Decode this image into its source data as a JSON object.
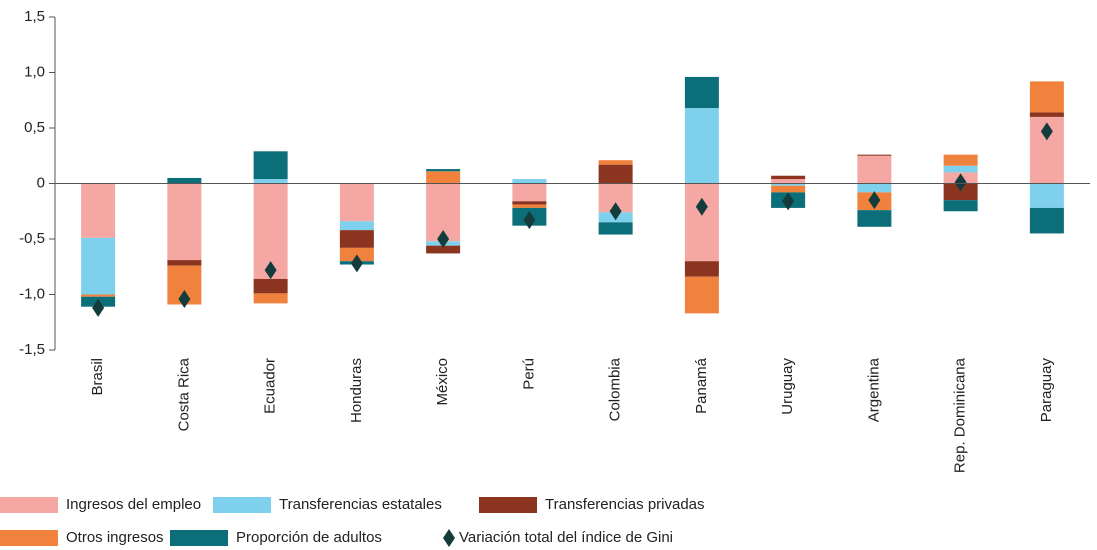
{
  "chart_data": {
    "type": "bar",
    "stacked": true,
    "categories": [
      "Brasil",
      "Costa Rica",
      "Ecuador",
      "Honduras",
      "México",
      "Perú",
      "Colombia",
      "Panamá",
      "Uruguay",
      "Argentina",
      "Rep. Dominicana",
      "Paraguay"
    ],
    "series": [
      {
        "name": "Ingresos del empleo",
        "color": "#f4a7a3",
        "values": [
          -0.49,
          -0.69,
          -0.86,
          -0.34,
          -0.52,
          -0.16,
          -0.26,
          -0.7,
          0.04,
          0.25,
          0.1,
          0.6
        ]
      },
      {
        "name": "Transferencias estatales",
        "color": "#7fd0ec",
        "values": [
          -0.51,
          0,
          0.04,
          -0.08,
          -0.04,
          0.04,
          -0.09,
          0.68,
          -0.02,
          -0.08,
          0.06,
          -0.22
        ]
      },
      {
        "name": "Transferencias privadas",
        "color": "#8b3520",
        "values": [
          0,
          -0.05,
          -0.13,
          -0.16,
          -0.07,
          -0.03,
          0.17,
          -0.14,
          0.03,
          0.01,
          -0.15,
          0.04
        ]
      },
      {
        "name": "Otros ingresos",
        "color": "#f0823e",
        "values": [
          -0.02,
          -0.35,
          -0.09,
          -0.12,
          0.11,
          -0.03,
          0.04,
          -0.33,
          -0.06,
          -0.16,
          0.1,
          0.28
        ]
      },
      {
        "name": "Proporción de adultos",
        "color": "#0c6e78",
        "values": [
          -0.09,
          0.05,
          0.25,
          -0.03,
          0.02,
          -0.16,
          -0.11,
          0.28,
          -0.14,
          -0.15,
          -0.1,
          -0.23
        ]
      }
    ],
    "markers": {
      "name": "Variación total del índice de Gini",
      "color": "#143c3c",
      "values": [
        -1.12,
        -1.04,
        -0.78,
        -0.72,
        -0.5,
        -0.33,
        -0.25,
        -0.21,
        -0.16,
        -0.15,
        0.01,
        0.47
      ]
    },
    "ylim": [
      -1.5,
      1.5
    ],
    "yticks": [
      {
        "value": 1.5,
        "label": "1,5"
      },
      {
        "value": 1.0,
        "label": "1,0"
      },
      {
        "value": 0.5,
        "label": "0,5"
      },
      0,
      {
        "value": -0.5,
        "label": "-0,5"
      },
      {
        "value": -1.0,
        "label": "-1,0"
      },
      {
        "value": -1.5,
        "label": "-1,5"
      }
    ]
  }
}
